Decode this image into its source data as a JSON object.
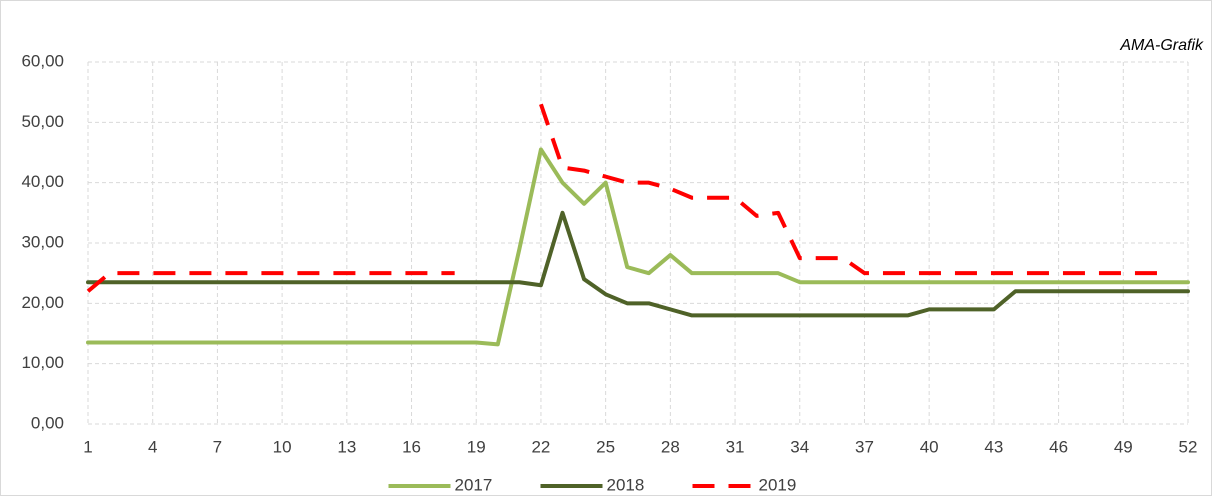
{
  "chart_data": {
    "type": "line",
    "annotation": "AMA-Grafik",
    "x": [
      1,
      2,
      3,
      4,
      5,
      6,
      7,
      8,
      9,
      10,
      11,
      12,
      13,
      14,
      15,
      16,
      17,
      18,
      19,
      20,
      21,
      22,
      23,
      24,
      25,
      26,
      27,
      28,
      29,
      30,
      31,
      32,
      33,
      34,
      35,
      36,
      37,
      38,
      39,
      40,
      41,
      42,
      43,
      44,
      45,
      46,
      47,
      48,
      49,
      50,
      51,
      52
    ],
    "xlim": [
      1,
      52
    ],
    "xticks": [
      1,
      4,
      7,
      10,
      13,
      16,
      19,
      22,
      25,
      28,
      31,
      34,
      37,
      40,
      43,
      46,
      49,
      52
    ],
    "ylim": [
      0,
      60
    ],
    "yticks": [
      {
        "value": 0,
        "label": "0,00"
      },
      {
        "value": 10,
        "label": "10,00"
      },
      {
        "value": 20,
        "label": "20,00"
      },
      {
        "value": 30,
        "label": "30,00"
      },
      {
        "value": 40,
        "label": "40,00"
      },
      {
        "value": 50,
        "label": "50,00"
      },
      {
        "value": 60,
        "label": "60,00"
      }
    ],
    "grid": true,
    "legend": "bottom",
    "series": [
      {
        "name": "2017",
        "color": "#9bbb59",
        "dashed": false,
        "values": [
          13.5,
          13.5,
          13.5,
          13.5,
          13.5,
          13.5,
          13.5,
          13.5,
          13.5,
          13.5,
          13.5,
          13.5,
          13.5,
          13.5,
          13.5,
          13.5,
          13.5,
          13.5,
          13.5,
          13.2,
          29,
          45.5,
          40,
          36.5,
          40,
          26,
          25,
          28,
          25,
          25,
          25,
          25,
          25,
          23.5,
          23.5,
          23.5,
          23.5,
          23.5,
          23.5,
          23.5,
          23.5,
          23.5,
          23.5,
          23.5,
          23.5,
          23.5,
          23.5,
          23.5,
          23.5,
          23.5,
          23.5,
          23.5
        ]
      },
      {
        "name": "2018",
        "color": "#4f6228",
        "dashed": false,
        "values": [
          23.5,
          23.5,
          23.5,
          23.5,
          23.5,
          23.5,
          23.5,
          23.5,
          23.5,
          23.5,
          23.5,
          23.5,
          23.5,
          23.5,
          23.5,
          23.5,
          23.5,
          23.5,
          23.5,
          23.5,
          23.5,
          23,
          35,
          24,
          21.5,
          20,
          20,
          19,
          18,
          18,
          18,
          18,
          18,
          18,
          18,
          18,
          18,
          18,
          18,
          19,
          19,
          19,
          19,
          22,
          22,
          22,
          22,
          22,
          22,
          22,
          22,
          22
        ]
      },
      {
        "name": "2019",
        "color": "#ff0000",
        "dashed": true,
        "values": [
          22,
          25,
          25,
          25,
          25,
          25,
          25,
          25,
          25,
          25,
          25,
          25,
          25,
          25,
          25,
          25,
          25,
          25,
          null,
          null,
          null,
          53,
          42.5,
          42,
          41,
          40,
          40,
          39,
          37.5,
          37.5,
          37.5,
          34.5,
          35,
          27.5,
          27.5,
          27.5,
          25,
          25,
          25,
          25,
          25,
          25,
          25,
          25,
          25,
          25,
          25,
          25,
          25,
          25,
          25,
          null
        ]
      }
    ]
  }
}
